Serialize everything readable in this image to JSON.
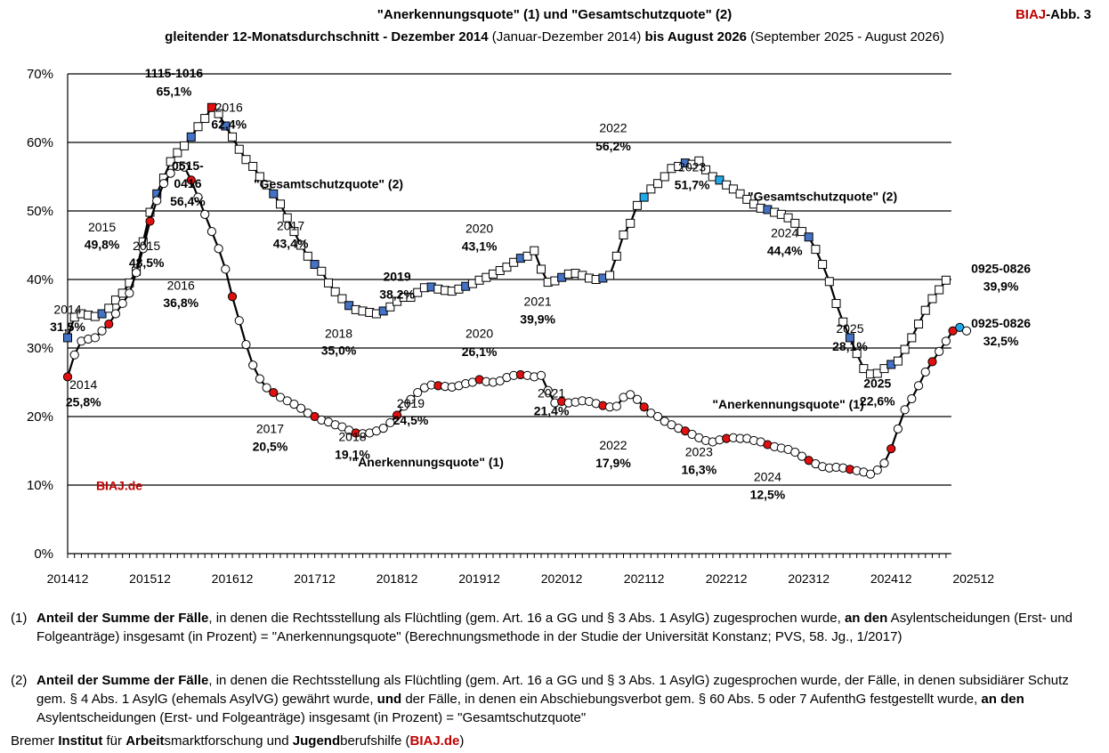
{
  "header": {
    "title_part1": "\"Anerkennungsquote\" (1) und \"Gesamtschutzquote\" (2)",
    "subtitle_a": "gleitender 12-Monatsdurchschnitt - Dezember 2014",
    "subtitle_b": " (Januar-Dezember 2014) ",
    "subtitle_c": "bis August 2026",
    "subtitle_d": " (September 2025 - August 2026)",
    "brand": "BIAJ",
    "figure_label": "-Abb. 3"
  },
  "colors": {
    "brand_red": "#c00000",
    "marker_red": "#e01010",
    "marker_blue": "#4472c4",
    "marker_lightblue": "#20a8e8",
    "line": "#000000"
  },
  "chart_data": {
    "type": "line",
    "ylim": [
      0,
      70
    ],
    "yticks": [
      "0%",
      "10%",
      "20%",
      "30%",
      "40%",
      "50%",
      "60%",
      "70%"
    ],
    "x_ticks": [
      "201412",
      "201512",
      "201612",
      "201712",
      "201812",
      "201912",
      "202012",
      "202112",
      "202212",
      "202312",
      "202412",
      "202512"
    ],
    "x_start": "2014-12",
    "grid": "horizontal",
    "watermark": "BIAJ.de",
    "series": [
      {
        "name": "\"Gesamtschutzquote\" (2)",
        "marker": "square",
        "values": [
          31.5,
          34.5,
          35.0,
          34.8,
          34.6,
          35.0,
          35.8,
          37.0,
          38.0,
          39.5,
          41.2,
          45.5,
          49.8,
          52.5,
          54.8,
          57.2,
          58.5,
          59.5,
          60.8,
          62.3,
          63.5,
          65.1,
          64.2,
          62.4,
          60.8,
          59.0,
          57.5,
          56.5,
          55.0,
          53.8,
          52.5,
          51.0,
          49.0,
          47.0,
          45.0,
          43.4,
          42.2,
          41.2,
          39.5,
          38.2,
          37.2,
          36.2,
          35.6,
          35.4,
          35.2,
          35.0,
          35.4,
          36.0,
          36.8,
          37.4,
          37.4,
          38.1,
          38.8,
          38.9,
          38.6,
          38.4,
          38.3,
          38.6,
          39.0,
          39.4,
          39.9,
          40.3,
          40.8,
          41.3,
          41.8,
          42.5,
          43.1,
          43.4,
          44.2,
          41.5,
          39.6,
          39.8,
          40.3,
          40.8,
          40.9,
          40.6,
          40.2,
          40.0,
          40.2,
          40.6,
          43.4,
          46.5,
          48.2,
          50.8,
          52.0,
          53.2,
          54.0,
          55.0,
          56.2,
          56.5,
          57.0,
          56.8,
          57.3,
          56.0,
          55.0,
          54.5,
          53.8,
          53.2,
          52.5,
          51.7,
          51.0,
          50.4,
          50.2,
          49.8,
          49.5,
          49.0,
          48.2,
          47.0,
          46.2,
          44.4,
          42.2,
          39.7,
          36.5,
          33.8,
          31.5,
          29.2,
          27.0,
          26.2,
          26.3,
          27.0,
          27.6,
          28.1,
          29.8,
          31.5,
          33.5,
          35.5,
          37.2,
          38.5,
          39.9
        ],
        "marker_colors": {
          "0": "blue",
          "5": "blue",
          "13": "blue",
          "18": "blue",
          "21": "red",
          "23": "blue",
          "30": "blue",
          "36": "blue",
          "41": "blue",
          "46": "blue",
          "53": "blue",
          "58": "blue",
          "66": "blue",
          "72": "blue",
          "78": "blue",
          "84": "lightblue",
          "90": "blue",
          "95": "lightblue",
          "102": "blue",
          "108": "blue",
          "114": "blue",
          "120": "blue",
          "129": "blue",
          "130": "red"
        }
      },
      {
        "name": "\"Anerkennungsquote\" (1)",
        "marker": "circle",
        "values": [
          25.8,
          29.0,
          31.0,
          31.3,
          31.5,
          32.5,
          33.5,
          35.0,
          36.5,
          38.0,
          41.0,
          44.5,
          48.5,
          51.5,
          54.0,
          55.5,
          56.5,
          56.4,
          54.5,
          52.0,
          49.5,
          47.0,
          44.5,
          41.5,
          37.5,
          34.0,
          30.5,
          27.5,
          25.5,
          24.2,
          23.5,
          22.8,
          22.3,
          21.8,
          21.2,
          20.5,
          20.0,
          19.5,
          19.2,
          18.8,
          18.5,
          18.0,
          17.6,
          17.5,
          17.6,
          17.9,
          18.3,
          19.1,
          20.2,
          21.5,
          22.5,
          23.5,
          24.2,
          24.6,
          24.5,
          24.4,
          24.3,
          24.5,
          24.8,
          25.0,
          25.4,
          25.1,
          25.0,
          25.2,
          25.7,
          26.0,
          26.1,
          26.0,
          25.8,
          26.0,
          23.8,
          22.0,
          22.2,
          22.0,
          22.1,
          22.3,
          22.2,
          21.9,
          21.6,
          21.4,
          21.5,
          22.8,
          23.2,
          22.5,
          21.4,
          20.5,
          20.0,
          19.3,
          18.8,
          18.3,
          17.9,
          17.4,
          16.9,
          16.5,
          16.3,
          16.6,
          16.8,
          16.9,
          16.8,
          16.8,
          16.5,
          16.3,
          15.9,
          15.6,
          15.4,
          15.2,
          14.8,
          14.2,
          13.6,
          13.1,
          12.7,
          12.5,
          12.6,
          12.5,
          12.3,
          12.1,
          11.9,
          11.6,
          12.2,
          13.2,
          15.3,
          18.2,
          21.0,
          22.6,
          24.5,
          26.5,
          28.0,
          29.5,
          31.0,
          32.5,
          33.0,
          32.5
        ],
        "marker_colors": {
          "0": "red",
          "6": "red",
          "12": "red",
          "18": "red",
          "24": "red",
          "30": "red",
          "36": "red",
          "42": "red",
          "48": "red",
          "54": "red",
          "60": "red",
          "66": "red",
          "72": "red",
          "78": "red",
          "84": "red",
          "90": "red",
          "96": "red",
          "102": "red",
          "108": "red",
          "114": "red",
          "120": "red",
          "126": "red",
          "129": "red",
          "130": "lightblue"
        }
      }
    ],
    "annotations": [
      {
        "text": "2014",
        "i": 0,
        "v": 35.0
      },
      {
        "text": "31,5%",
        "i": 0,
        "v": 32.5,
        "bold": true
      },
      {
        "text": "2014",
        "i": 2.3,
        "v": 24.0
      },
      {
        "text": "25,8%",
        "i": 2.3,
        "v": 21.5,
        "bold": true
      },
      {
        "text": "2015",
        "i": 5,
        "v": 47.0
      },
      {
        "text": "49,8%",
        "i": 5,
        "v": 44.5,
        "bold": true
      },
      {
        "text": "2015",
        "i": 11.5,
        "v": 44.3
      },
      {
        "text": "48,5%",
        "i": 11.5,
        "v": 41.8,
        "bold": true
      },
      {
        "text": "1115-1016",
        "i": 15.5,
        "v": 69.5,
        "bold": true
      },
      {
        "text": "65,1%",
        "i": 15.5,
        "v": 66.8,
        "bold": true
      },
      {
        "text": "2016",
        "i": 23.5,
        "v": 64.5
      },
      {
        "text": "62,4%",
        "i": 23.5,
        "v": 62.0,
        "bold": true
      },
      {
        "text": "0515-",
        "i": 17.5,
        "v": 56.0,
        "bold": true
      },
      {
        "text": "0416",
        "i": 17.5,
        "v": 53.4,
        "bold": true
      },
      {
        "text": "56,4%",
        "i": 17.5,
        "v": 50.8,
        "bold": true
      },
      {
        "text": "\"Gesamtschutzquote\" (2)",
        "i": 38,
        "v": 53.3,
        "bold": true
      },
      {
        "text": "2017",
        "i": 32.5,
        "v": 47.2
      },
      {
        "text": "43,4%",
        "i": 32.5,
        "v": 44.6,
        "bold": true
      },
      {
        "text": "2016",
        "i": 16.5,
        "v": 38.5
      },
      {
        "text": "36,8%",
        "i": 16.5,
        "v": 36.0,
        "bold": true
      },
      {
        "text": "2019",
        "i": 48,
        "v": 39.8,
        "bold": true
      },
      {
        "text": "38,2%",
        "i": 48,
        "v": 37.2,
        "bold": true
      },
      {
        "text": "2020",
        "i": 60,
        "v": 46.8
      },
      {
        "text": "43,1%",
        "i": 60,
        "v": 44.2,
        "bold": true
      },
      {
        "text": "2018",
        "i": 39.5,
        "v": 31.5
      },
      {
        "text": "35,0%",
        "i": 39.5,
        "v": 29.0,
        "bold": true
      },
      {
        "text": "2020",
        "i": 60,
        "v": 31.5
      },
      {
        "text": "26,1%",
        "i": 60,
        "v": 28.8,
        "bold": true
      },
      {
        "text": "2021",
        "i": 68.5,
        "v": 36.2
      },
      {
        "text": "39,9%",
        "i": 68.5,
        "v": 33.6,
        "bold": true
      },
      {
        "text": "2022",
        "i": 79.5,
        "v": 61.5
      },
      {
        "text": "56,2%",
        "i": 79.5,
        "v": 58.8,
        "bold": true
      },
      {
        "text": "2023",
        "i": 91,
        "v": 55.8
      },
      {
        "text": "51,7%",
        "i": 91,
        "v": 53.2,
        "bold": true
      },
      {
        "text": "\"Gesamtschutzquote\" (2)",
        "i": 110,
        "v": 51.5,
        "bold": true
      },
      {
        "text": "2024",
        "i": 104.5,
        "v": 46.2
      },
      {
        "text": "44,4%",
        "i": 104.5,
        "v": 43.6,
        "bold": true
      },
      {
        "text": "2025",
        "i": 114,
        "v": 32.2
      },
      {
        "text": "28,1%",
        "i": 114,
        "v": 29.6,
        "bold": true
      },
      {
        "text": "0925-0826",
        "i": 136,
        "v": 41.0,
        "bold": true
      },
      {
        "text": "39,9%",
        "i": 136,
        "v": 38.4,
        "bold": true
      },
      {
        "text": "0925-0826",
        "i": 136,
        "v": 33.0,
        "bold": true
      },
      {
        "text": "32,5%",
        "i": 136,
        "v": 30.4,
        "bold": true
      },
      {
        "text": "2019",
        "i": 50,
        "v": 21.3
      },
      {
        "text": "24,5%",
        "i": 50,
        "v": 18.8,
        "bold": true
      },
      {
        "text": "2017",
        "i": 29.5,
        "v": 17.6
      },
      {
        "text": "20,5%",
        "i": 29.5,
        "v": 15.0,
        "bold": true
      },
      {
        "text": "2018",
        "i": 41.5,
        "v": 16.4
      },
      {
        "text": "19,1%",
        "i": 41.5,
        "v": 13.8,
        "bold": true
      },
      {
        "text": "\"Anerkennungsquote\" (1)",
        "i": 52.5,
        "v": 12.7,
        "bold": true
      },
      {
        "text": "2021",
        "i": 70.5,
        "v": 22.8
      },
      {
        "text": "21,4%",
        "i": 70.5,
        "v": 20.2,
        "bold": true
      },
      {
        "text": "\"Anerkennungsquote\" (1)",
        "i": 105,
        "v": 21.2,
        "bold": true
      },
      {
        "text": "2025",
        "i": 118,
        "v": 24.2,
        "bold": true
      },
      {
        "text": "22,6%",
        "i": 118,
        "v": 21.6,
        "bold": true
      },
      {
        "text": "2022",
        "i": 79.5,
        "v": 15.2
      },
      {
        "text": "17,9%",
        "i": 79.5,
        "v": 12.6,
        "bold": true
      },
      {
        "text": "2023",
        "i": 92,
        "v": 14.2
      },
      {
        "text": "16,3%",
        "i": 92,
        "v": 11.6,
        "bold": true
      },
      {
        "text": "2024",
        "i": 102,
        "v": 10.6
      },
      {
        "text": "12,5%",
        "i": 102,
        "v": 8.0,
        "bold": true
      }
    ]
  },
  "footnotes": {
    "n1": "(1)",
    "n1_b1": "Anteil der Summe der Fälle",
    "n1_t1": ", in denen die Rechtsstellung als Flüchtling (gem. Art. 16 a GG und § 3 Abs. 1 AsylG) zugesprochen wurde, ",
    "n1_b2": "an den",
    "n1_t2": " Asylentscheidungen (Erst- und Folgeanträge) insgesamt (in Prozent) = \"Anerkennungsquote\" (Berechnungsmethode in der Studie der Universität Konstanz; PVS, 58. Jg., 1/2017)",
    "n2": "(2)",
    "n2_b1": "Anteil der Summe der Fälle",
    "n2_t1": ", in denen die Rechtsstellung als Flüchtling (gem. Art. 16 a GG und § 3 Abs. 1 AsylG) zugesprochen wurde, der Fälle, in denen subsidiärer Schutz gem. § 4 Abs. 1 AsylG (ehemals AsylVG) gewährt wurde, ",
    "n2_b2": "und",
    "n2_t2": " der Fälle, in denen ein Abschiebungsverbot gem. § 60 Abs. 5 oder 7 AufenthG festgestellt wurde, ",
    "n2_b3": "an den",
    "n2_t3": " Asylentscheidungen (Erst- und Folgeanträge) insgesamt (in Prozent) = \"Gesamtschutzquote\"",
    "org_1": "Bremer ",
    "org_2": "Institut",
    "org_3": " für ",
    "org_4": "Arbeit",
    "org_5": "smarktforschung und ",
    "org_6": "Jugend",
    "org_7": "berufshilfe (",
    "org_8": "BIAJ.de",
    "org_9": ")"
  }
}
